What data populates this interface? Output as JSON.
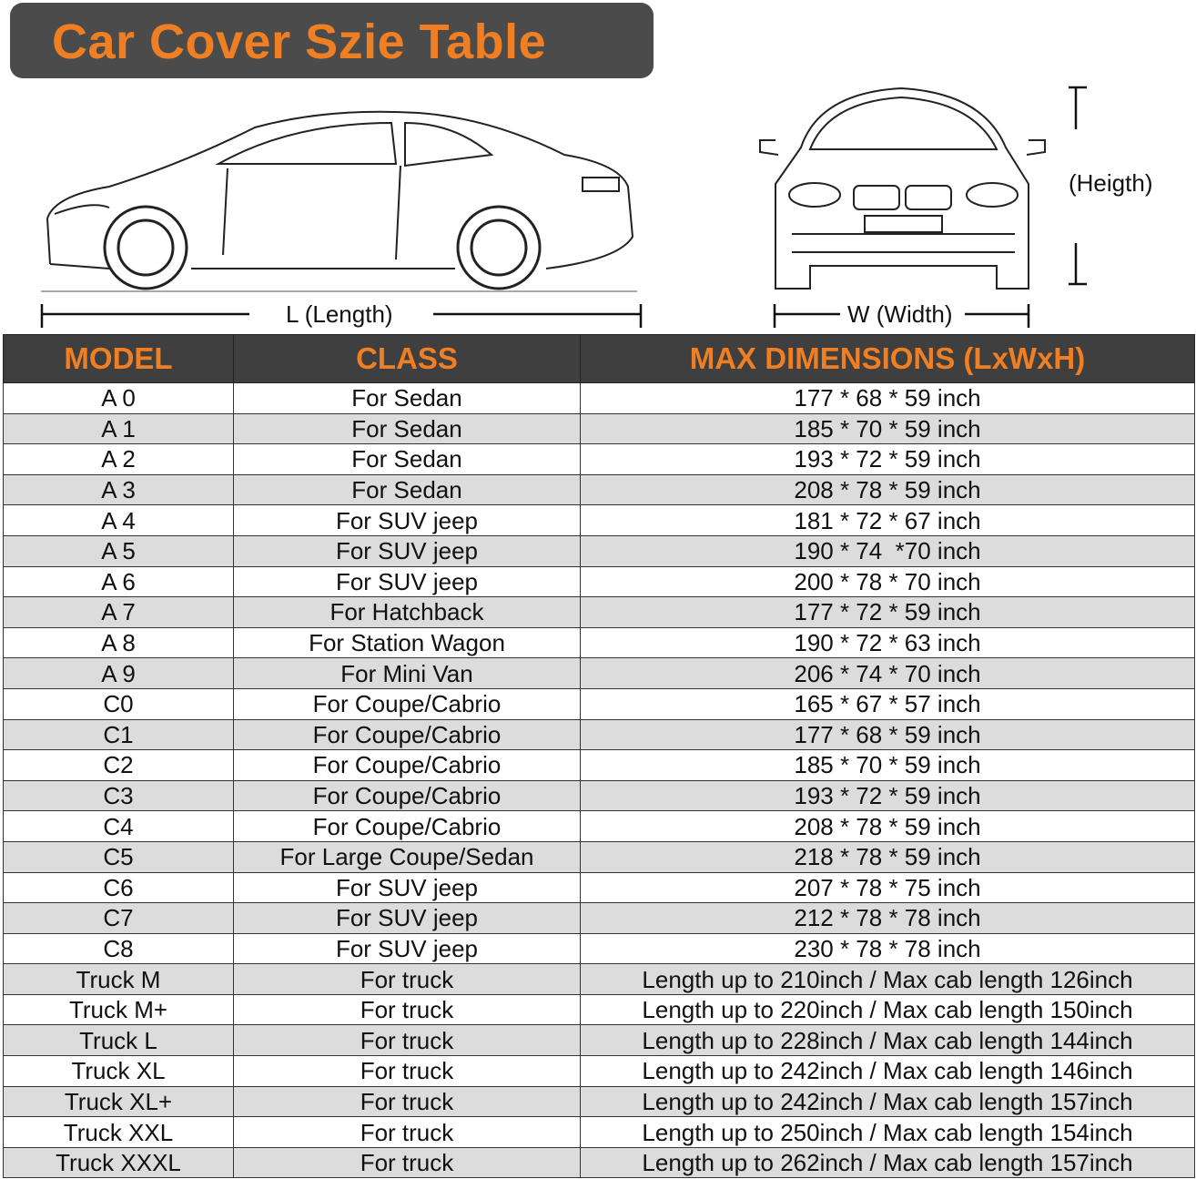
{
  "title": "Car Cover Szie Table",
  "labels": {
    "length": "L (Length)",
    "width": "W (Width)",
    "height": "(Heigth)"
  },
  "colors": {
    "accent": "#f07f23",
    "header_bg": "#3f3f3f",
    "alt_row": "#dcdcdc"
  },
  "table": {
    "headers": [
      "MODEL",
      "CLASS",
      "MAX DIMENSIONS (LxWxH)"
    ],
    "rows": [
      [
        "A 0",
        "For Sedan",
        "177 * 68 * 59 inch"
      ],
      [
        "A 1",
        "For Sedan",
        "185 * 70 * 59 inch"
      ],
      [
        "A 2",
        "For Sedan",
        "193 * 72 * 59 inch"
      ],
      [
        "A 3",
        "For Sedan",
        "208 * 78 * 59 inch"
      ],
      [
        "A 4",
        "For SUV jeep",
        "181 * 72 * 67 inch"
      ],
      [
        "A 5",
        "For SUV jeep",
        "190 * 74  *70 inch"
      ],
      [
        "A 6",
        "For SUV jeep",
        "200 * 78 * 70 inch"
      ],
      [
        "A 7",
        "For Hatchback",
        "177 * 72 * 59 inch"
      ],
      [
        "A 8",
        "For Station Wagon",
        "190 * 72 * 63 inch"
      ],
      [
        "A 9",
        "For Mini Van",
        "206 * 74 * 70 inch"
      ],
      [
        "C0",
        "For Coupe/Cabrio",
        "165 * 67 * 57 inch"
      ],
      [
        "C1",
        "For Coupe/Cabrio",
        "177 * 68 * 59 inch"
      ],
      [
        "C2",
        "For Coupe/Cabrio",
        "185 * 70 * 59 inch"
      ],
      [
        "C3",
        "For Coupe/Cabrio",
        "193 * 72 * 59 inch"
      ],
      [
        "C4",
        "For Coupe/Cabrio",
        "208 * 78 * 59 inch"
      ],
      [
        "C5",
        "For Large Coupe/Sedan",
        "218 * 78 * 59 inch"
      ],
      [
        "C6",
        "For SUV jeep",
        "207 * 78 * 75 inch"
      ],
      [
        "C7",
        "For SUV jeep",
        "212 * 78 * 78 inch"
      ],
      [
        "C8",
        "For SUV jeep",
        "230 * 78 * 78 inch"
      ],
      [
        "Truck M",
        "For truck",
        "Length up to 210inch / Max cab length 126inch"
      ],
      [
        "Truck M+",
        "For truck",
        "Length up to 220inch / Max cab length 150inch"
      ],
      [
        "Truck L",
        "For truck",
        "Length up to 228inch / Max cab length 144inch"
      ],
      [
        "Truck XL",
        "For truck",
        "Length up to 242inch / Max cab length 146inch"
      ],
      [
        "Truck XL+",
        "For truck",
        "Length up to 242inch / Max cab length 157inch"
      ],
      [
        "Truck XXL",
        "For truck",
        "Length up to 250inch / Max cab length 154inch"
      ],
      [
        "Truck XXXL",
        "For truck",
        "Length up to 262inch / Max cab length 157inch"
      ]
    ]
  }
}
